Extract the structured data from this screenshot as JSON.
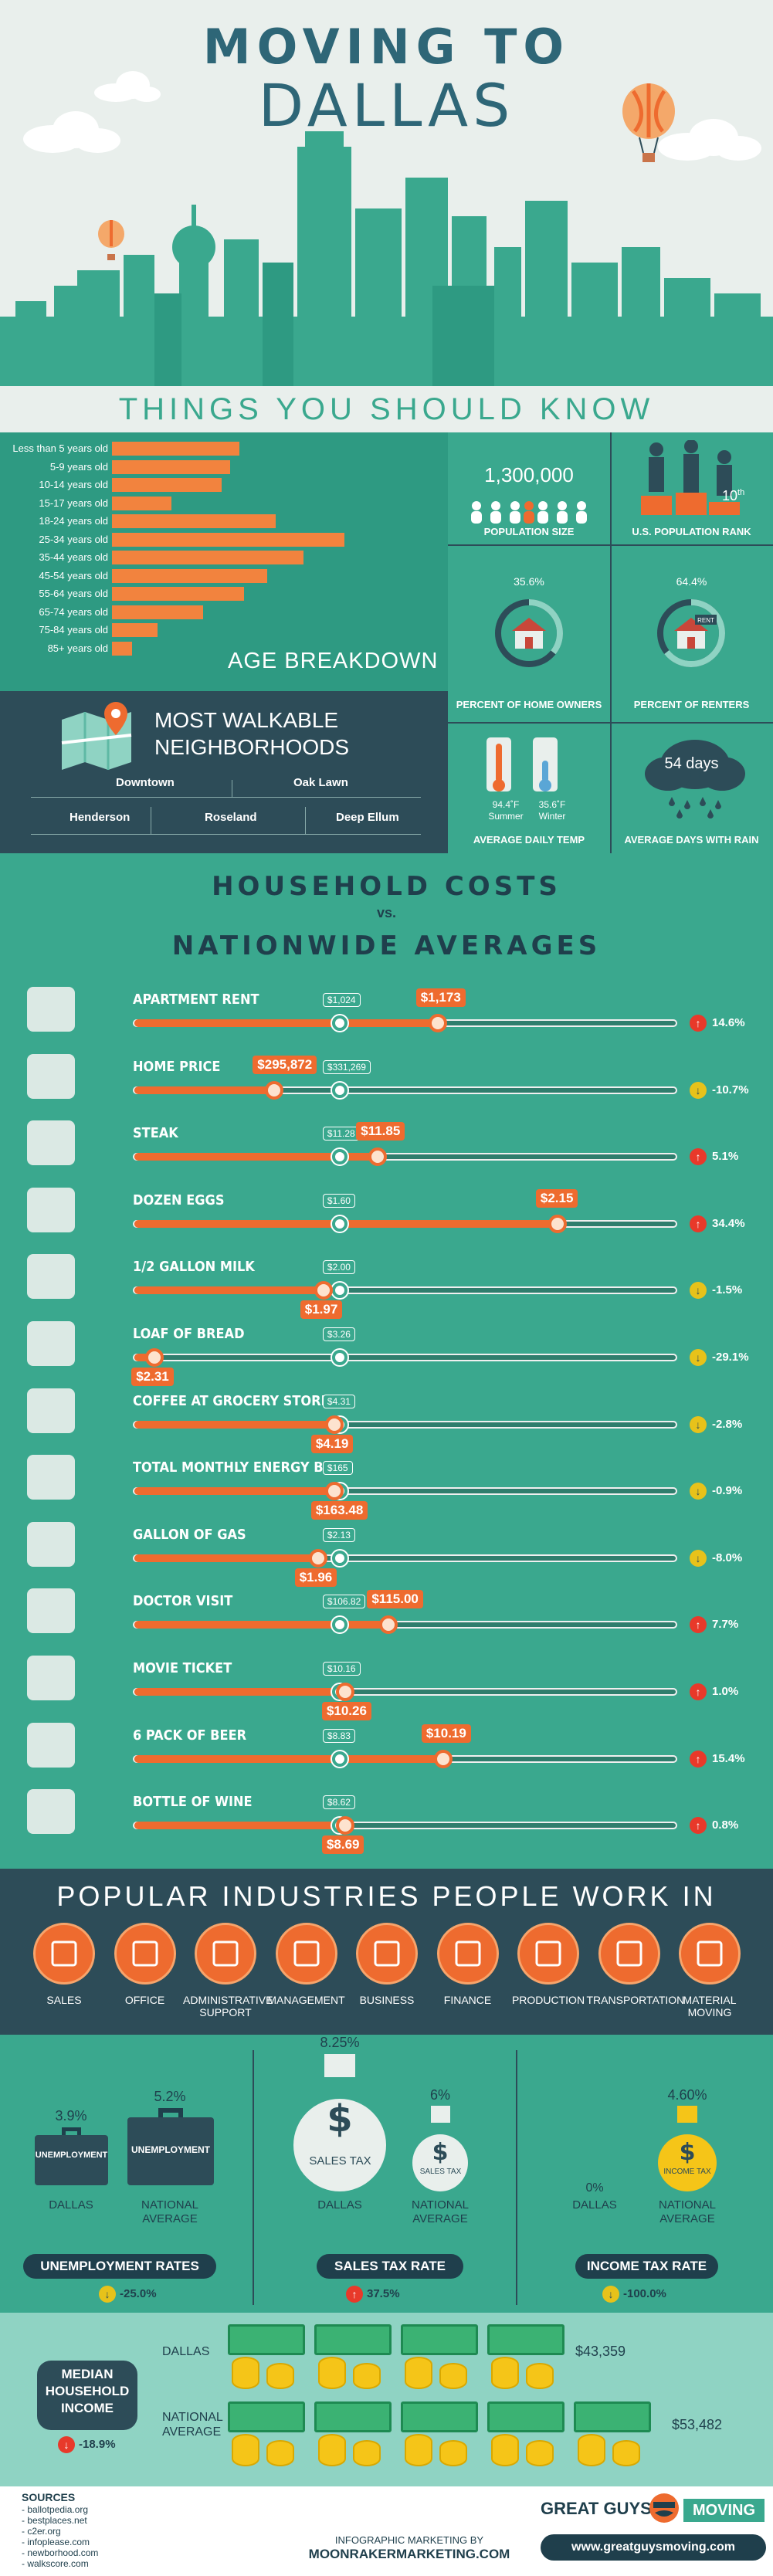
{
  "header": {
    "title_line1": "MOVING TO",
    "title_line2": "DALLAS"
  },
  "things_heading": "THINGS YOU SHOULD KNOW",
  "age": {
    "heading": "AGE BREAKDOWN",
    "groups": [
      {
        "label": "Less than 5 years old",
        "value": 140
      },
      {
        "label": "5-9 years old",
        "value": 130
      },
      {
        "label": "10-14 years old",
        "value": 120
      },
      {
        "label": "15-17 years old",
        "value": 65
      },
      {
        "label": "18-24 years old",
        "value": 180
      },
      {
        "label": "25-34 years old",
        "value": 255
      },
      {
        "label": "35-44 years old",
        "value": 210
      },
      {
        "label": "45-54 years old",
        "value": 170
      },
      {
        "label": "55-64 years old",
        "value": 145
      },
      {
        "label": "65-74 years old",
        "value": 100
      },
      {
        "label": "75-84 years old",
        "value": 50
      },
      {
        "label": "85+ years old",
        "value": 22
      }
    ]
  },
  "walk": {
    "heading_line1": "MOST WALKABLE",
    "heading_line2": "NEIGHBORHOODS",
    "n1": "Downtown",
    "n2": "Oak Lawn",
    "n3": "Henderson",
    "n4": "Roseland",
    "n5": "Deep Ellum"
  },
  "stats": {
    "pop_value": "1,300,000",
    "pop_label": "POPULATION SIZE",
    "rank_value": "10",
    "rank_sup": "th",
    "rank_label": "U.S. POPULATION RANK",
    "owners_pct": "35.6%",
    "owners_label": "PERCENT OF HOME OWNERS",
    "owners_value": 0.356,
    "renters_pct": "64.4%",
    "renters_label": "PERCENT OF RENTERS",
    "renters_value": 0.644,
    "rent_sign": "RENT",
    "summer_temp": "94.4˚F",
    "summer_label": "Summer",
    "winter_temp": "35.6˚F",
    "winter_label": "Winter",
    "temp_label": "AVERAGE DAILY TEMP",
    "rain_days": "54 days",
    "rain_label": "AVERAGE DAYS WITH RAIN"
  },
  "costs": {
    "heading1": "HOUSEHOLD COSTS",
    "vs": "vs.",
    "heading2": "NATIONWIDE AVERAGES",
    "items": [
      {
        "label": "APARTMENT RENT",
        "dallas": "$1,173",
        "national": "$1,024",
        "pct": "14.6%",
        "dir": "up",
        "dpos": 0.56,
        "npos": 0.38
      },
      {
        "label": "HOME PRICE",
        "dallas": "$295,872",
        "national": "$331,269",
        "pct": "-10.7%",
        "dir": "down",
        "dpos": 0.26,
        "npos": 0.38
      },
      {
        "label": "STEAK",
        "dallas": "$11.85",
        "national": "$11.28",
        "pct": "5.1%",
        "dir": "up",
        "dpos": 0.45,
        "npos": 0.38
      },
      {
        "label": "DOZEN EGGS",
        "dallas": "$2.15",
        "national": "$1.60",
        "pct": "34.4%",
        "dir": "up",
        "dpos": 0.78,
        "npos": 0.38
      },
      {
        "label": "1/2 GALLON MILK",
        "dallas": "$1.97",
        "national": "$2.00",
        "pct": "-1.5%",
        "dir": "down",
        "dpos": 0.35,
        "npos": 0.38
      },
      {
        "label": "LOAF OF BREAD",
        "dallas": "$2.31",
        "national": "$3.26",
        "pct": "-29.1%",
        "dir": "down",
        "dpos": 0.04,
        "npos": 0.38
      },
      {
        "label": "COFFEE AT GROCERY STORE",
        "dallas": "$4.19",
        "national": "$4.31",
        "pct": "-2.8%",
        "dir": "down",
        "dpos": 0.37,
        "npos": 0.38
      },
      {
        "label": "TOTAL MONTHLY ENERGY BILL",
        "dallas": "$163.48",
        "national": "$165",
        "pct": "-0.9%",
        "dir": "down",
        "dpos": 0.37,
        "npos": 0.38
      },
      {
        "label": "GALLON OF GAS",
        "dallas": "$1.96",
        "national": "$2.13",
        "pct": "-8.0%",
        "dir": "down",
        "dpos": 0.34,
        "npos": 0.38
      },
      {
        "label": "DOCTOR VISIT",
        "dallas": "$115.00",
        "national": "$106.82",
        "pct": "7.7%",
        "dir": "up",
        "dpos": 0.47,
        "npos": 0.38
      },
      {
        "label": "MOVIE TICKET",
        "dallas": "$10.26",
        "national": "$10.16",
        "pct": "1.0%",
        "dir": "up",
        "dpos": 0.39,
        "npos": 0.38
      },
      {
        "label": "6 PACK OF BEER",
        "dallas": "$10.19",
        "national": "$8.83",
        "pct": "15.4%",
        "dir": "up",
        "dpos": 0.57,
        "npos": 0.38
      },
      {
        "label": "BOTTLE OF WINE",
        "dallas": "$8.69",
        "national": "$8.62",
        "pct": "0.8%",
        "dir": "up",
        "dpos": 0.39,
        "npos": 0.38
      }
    ]
  },
  "industries": {
    "heading": "POPULAR INDUSTRIES PEOPLE WORK IN",
    "items": [
      "SALES",
      "OFFICE",
      "ADMINISTRATIVE SUPPORT",
      "MANAGEMENT",
      "BUSINESS",
      "FINANCE",
      "PRODUCTION",
      "TRANSPORTATION",
      "MATERIAL MOVING"
    ]
  },
  "rates": {
    "unemp_dallas_pct": "3.9%",
    "unemp_nat_pct": "5.2%",
    "unemp_word": "UNEMPLOYMENT",
    "unemp_title": "UNEMPLOYMENT RATES",
    "unemp_change": "-25.0%",
    "sales_dallas_pct": "8.25%",
    "sales_nat_pct": "6%",
    "sales_word": "SALES TAX",
    "sales_title": "SALES TAX RATE",
    "sales_change": "37.5%",
    "income_dallas_pct": "0%",
    "income_nat_pct": "4.60%",
    "income_word": "INCOME TAX",
    "income_title": "INCOME TAX RATE",
    "income_change": "-100.0%",
    "dallas": "DALLAS",
    "national_l1": "NATIONAL",
    "national_l2": "AVERAGE"
  },
  "income": {
    "title_l1": "MEDIAN",
    "title_l2": "HOUSEHOLD",
    "title_l3": "INCOME",
    "change": "-18.9%",
    "dallas_label": "DALLAS",
    "national_l1": "NATIONAL",
    "national_l2": "AVERAGE",
    "dallas_value": "$43,359",
    "national_value": "$53,482"
  },
  "footer": {
    "sources_title": "SOURCES",
    "sources": [
      "- ballotpedia.org",
      "- bestplaces.net",
      "- c2er.org",
      "- infoplease.com",
      "- newborhood.com",
      "- walkscore.com"
    ],
    "credit_l1": "INFOGRAPHIC MARKETING BY",
    "credit_l2": "MOONRAKERMARKETING.COM",
    "brand_l1": "GREAT GUYS",
    "brand_l2": "MOVING",
    "brand_url": "www.greatguysmoving.com"
  },
  "colors": {
    "teal": "#3aa88e",
    "dark": "#2d4c58",
    "orange": "#ee6b2f"
  }
}
